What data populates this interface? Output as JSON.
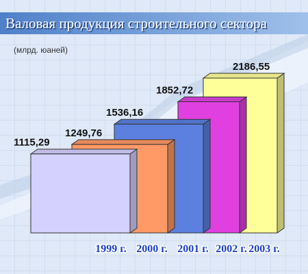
{
  "chart_data": {
    "type": "bar3d",
    "title": "Валовая продукция строительного сектора",
    "subtitle": "(млрд. юаней)",
    "categories": [
      "1999 г.",
      "2000 г.",
      "2001 г.",
      "2002 г.",
      "2003 г."
    ],
    "values": [
      1115.29,
      1249.76,
      1536.16,
      1852.72,
      2186.55
    ],
    "value_labels": [
      "1115,29",
      "1249,76",
      "1536,16",
      "1852,72",
      "2186,55"
    ],
    "colors": [
      "#d4d0ff",
      "#ff9966",
      "#5b80e0",
      "#e040e0",
      "#ffff99"
    ]
  }
}
